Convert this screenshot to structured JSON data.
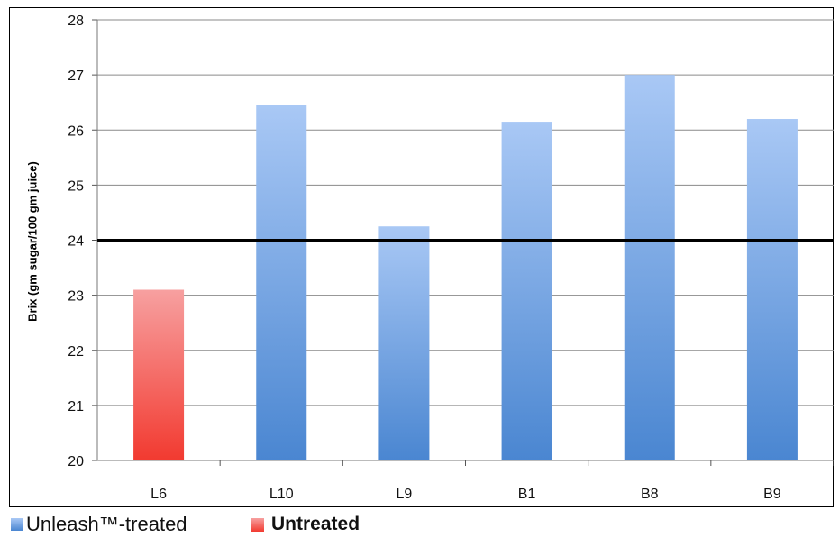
{
  "chart_data": {
    "type": "bar",
    "categories": [
      "L6",
      "L10",
      "L9",
      "B1",
      "B8",
      "B9"
    ],
    "values": [
      23.1,
      26.45,
      24.25,
      26.15,
      27.0,
      26.2
    ],
    "groups": [
      "untreated",
      "treated",
      "treated",
      "treated",
      "treated",
      "treated"
    ],
    "ylabel": "Brix (gm sugar/100 gm juice)",
    "ylim": [
      20,
      28
    ],
    "yticks": [
      20,
      21,
      22,
      23,
      24,
      25,
      26,
      27,
      28
    ],
    "reference_line": 24,
    "grid": true,
    "legend": [
      {
        "label": "Unleash™-treated",
        "group": "treated",
        "color": "#5e95db"
      },
      {
        "label": "Untreated",
        "group": "untreated",
        "color": "#f06060"
      }
    ],
    "legend_position": "bottom-left"
  }
}
